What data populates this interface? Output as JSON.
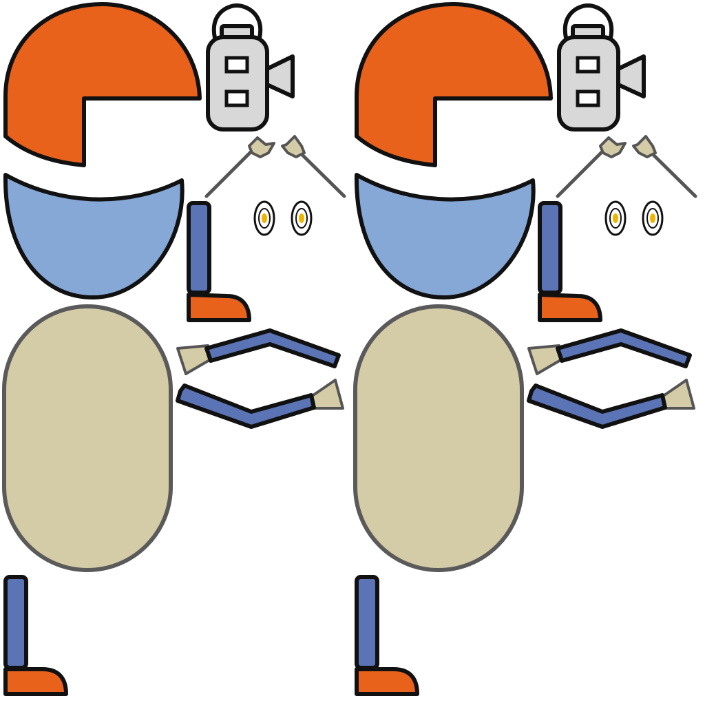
{
  "sprite_sheet": {
    "copies": 2,
    "parts": [
      "helmet",
      "camera",
      "antenna-left",
      "antenna-right",
      "face-shield",
      "eyes",
      "upper-leg",
      "torso",
      "arm-upper",
      "arm-lower",
      "lower-leg"
    ]
  },
  "palette": {
    "outline": "#111111",
    "gray_outline": "#5a5a5a",
    "orange": "#E8621C",
    "light_blue": "#86A8D6",
    "navy": "#5A74B5",
    "beige": "#D4CCA6",
    "camera_gray": "#D8D8D8",
    "eye_yellow": "#F0B400",
    "stick_gray": "#555555",
    "white": "#FFFFFF"
  }
}
